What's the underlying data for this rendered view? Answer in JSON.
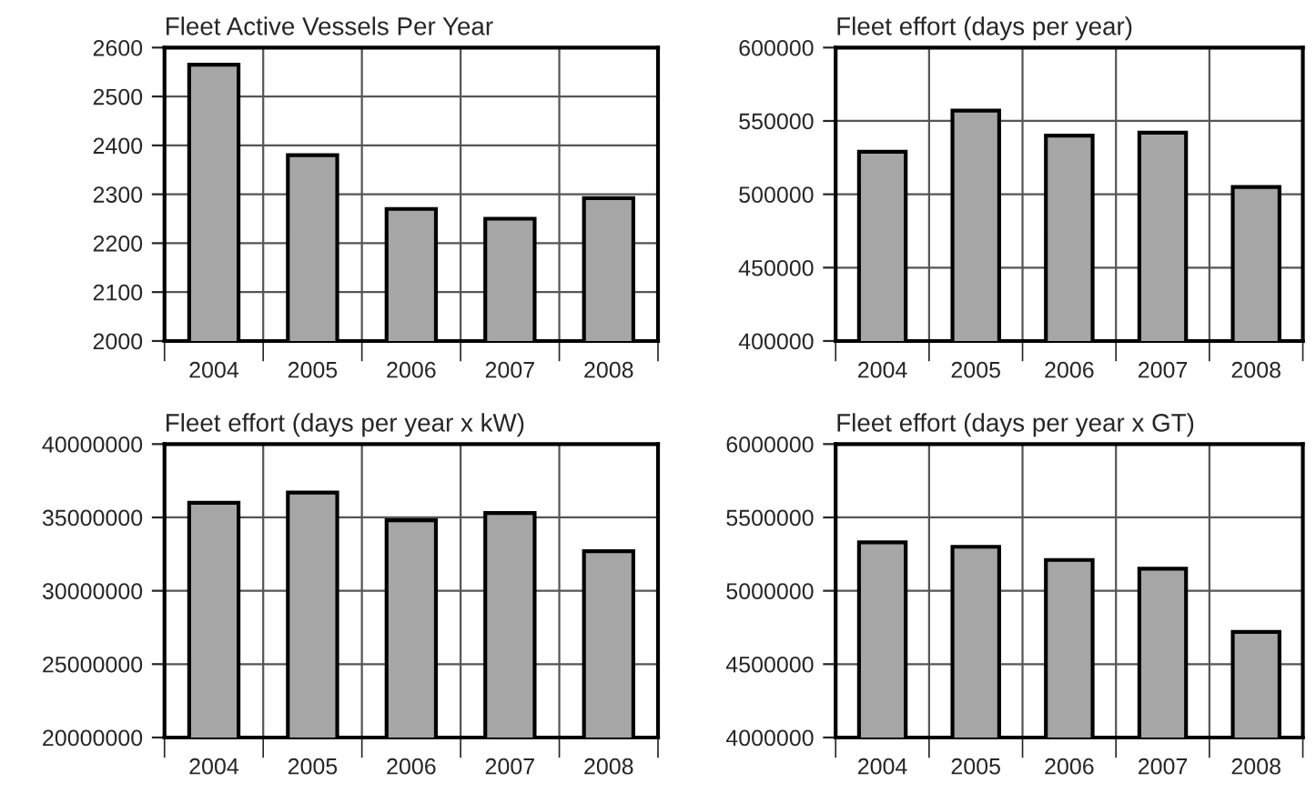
{
  "chart_data": [
    {
      "type": "bar",
      "title": "Fleet Active Vessels Per Year",
      "categories": [
        "2004",
        "2005",
        "2006",
        "2007",
        "2008"
      ],
      "values": [
        2565,
        2380,
        2270,
        2250,
        2292
      ],
      "color": "#a6a6a6",
      "ylim": [
        2000,
        2600
      ],
      "yticks": [
        2000,
        2100,
        2200,
        2300,
        2400,
        2500,
        2600
      ],
      "grid": true
    },
    {
      "type": "bar",
      "title": "Fleet effort (days per year)",
      "categories": [
        "2004",
        "2005",
        "2006",
        "2007",
        "2008"
      ],
      "values": [
        529000,
        557000,
        540000,
        542000,
        505000
      ],
      "color": "#a6a6a6",
      "ylim": [
        400000,
        600000
      ],
      "yticks": [
        400000,
        450000,
        500000,
        550000,
        600000
      ],
      "grid": true
    },
    {
      "type": "bar",
      "title": "Fleet effort (days per year x kW)",
      "categories": [
        "2004",
        "2005",
        "2006",
        "2007",
        "2008"
      ],
      "values": [
        36000000,
        36700000,
        34800000,
        35300000,
        32700000
      ],
      "color": "#a6a6a6",
      "ylim": [
        20000000,
        40000000
      ],
      "yticks": [
        20000000,
        25000000,
        30000000,
        35000000,
        40000000
      ],
      "grid": true
    },
    {
      "type": "bar",
      "title": "Fleet effort (days per year x GT)",
      "categories": [
        "2004",
        "2005",
        "2006",
        "2007",
        "2008"
      ],
      "values": [
        5330000,
        5300000,
        5210000,
        5150000,
        4720000
      ],
      "color": "#a6a6a6",
      "ylim": [
        4000000,
        6000000
      ],
      "yticks": [
        4000000,
        4500000,
        5000000,
        5500000,
        6000000
      ],
      "grid": true
    }
  ]
}
